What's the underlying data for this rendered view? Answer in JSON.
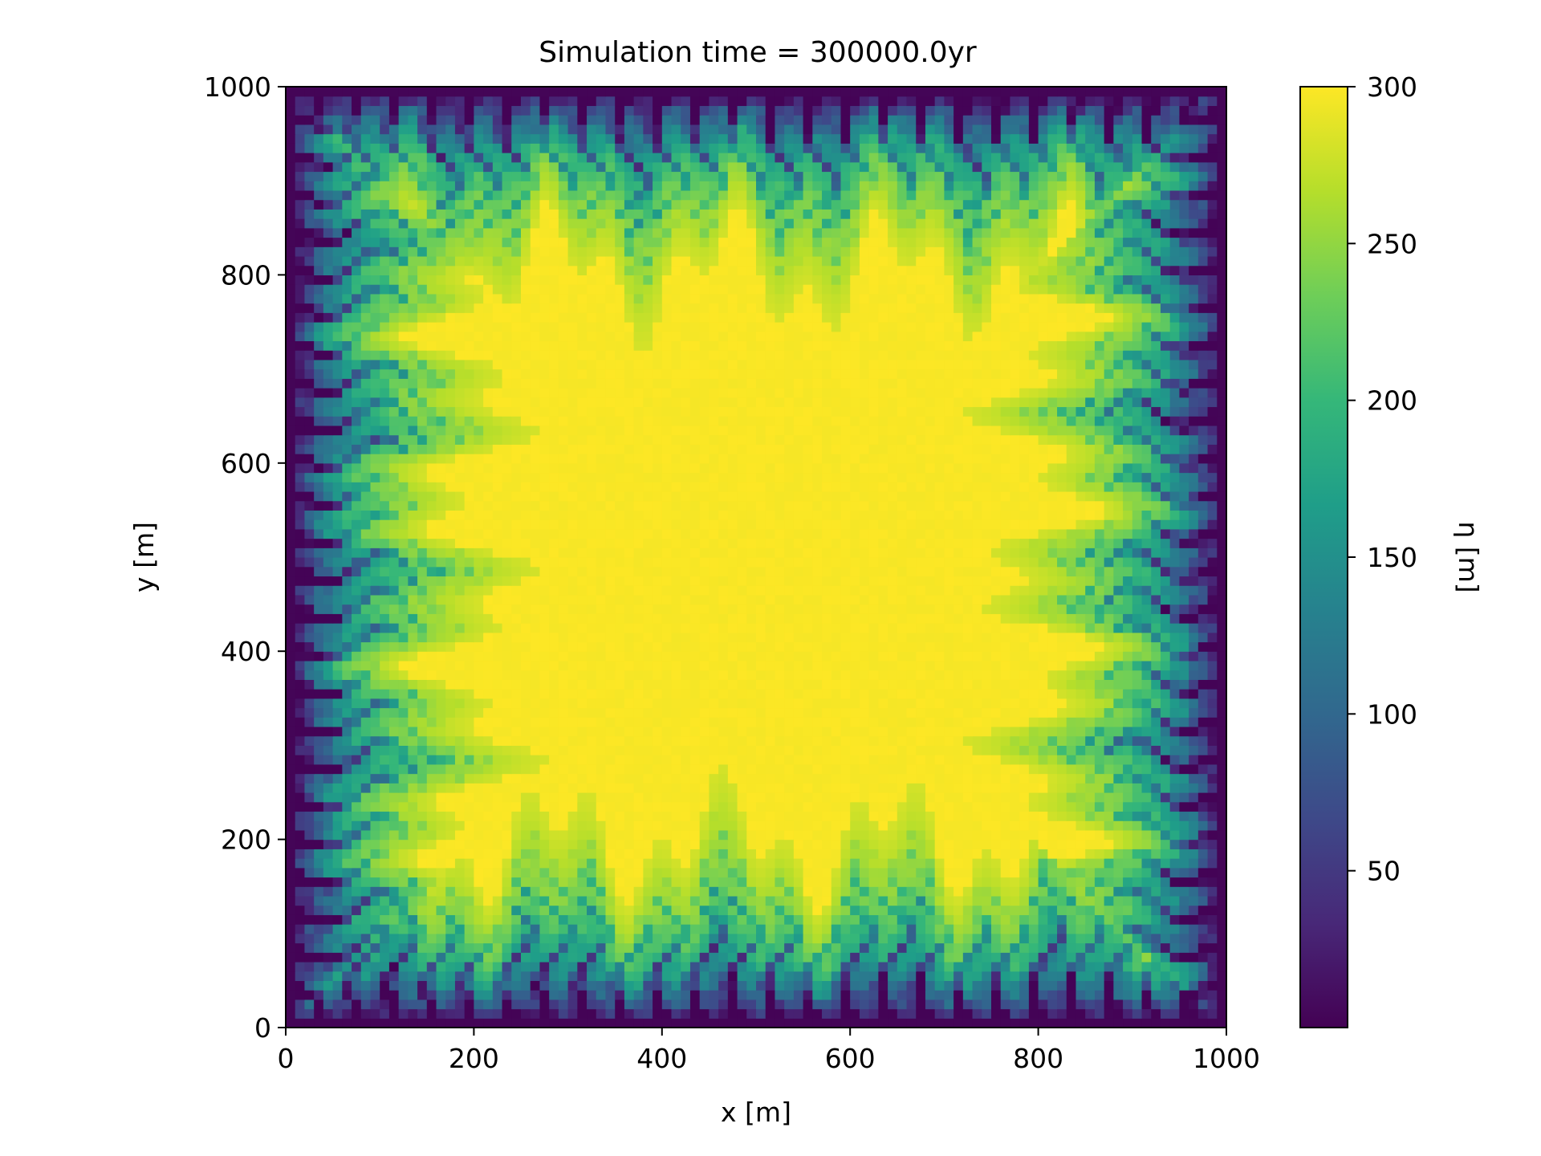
{
  "chart_data": {
    "type": "heatmap",
    "title": "Simulation time = 300000.0yr",
    "xlabel": "x [m]",
    "ylabel": "y [m]",
    "xlim": [
      0,
      1000
    ],
    "ylim": [
      0,
      1000
    ],
    "xticks": [
      "0",
      "200",
      "400",
      "600",
      "800",
      "1000"
    ],
    "yticks": [
      "0",
      "200",
      "400",
      "600",
      "800",
      "1000"
    ],
    "grid": false,
    "grid_size": [
      100,
      100
    ],
    "interior_value": 300,
    "boundary_value": 0,
    "value_range": [
      0,
      300
    ],
    "description": "Landscape elevation eta after 300000 yr: flat plateau at 300 m dissected by dendritic channel networks along all four edges draining to a fixed low boundary.",
    "colorbar": {
      "label": "η [m]",
      "colormap": "viridis",
      "range": [
        0,
        300
      ],
      "ticks": [
        "50",
        "100",
        "150",
        "200",
        "250",
        "300"
      ],
      "tick_values": [
        50,
        100,
        150,
        200,
        250,
        300
      ]
    },
    "colors": {
      "viridis": [
        "#440154",
        "#482878",
        "#3e4989",
        "#31688e",
        "#26828e",
        "#1f9e89",
        "#35b779",
        "#6ece58",
        "#b5de2b",
        "#fde725"
      ]
    }
  }
}
